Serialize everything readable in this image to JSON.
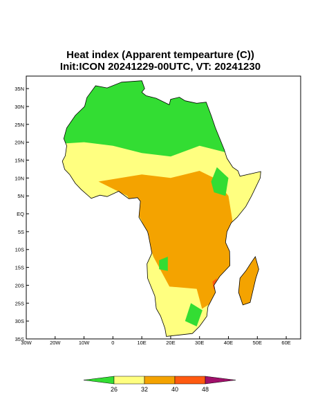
{
  "map": {
    "title": [
      "Heat index (Apparent tempearture (C))",
      "Init:ICON 20241229-00UTC, VT: 20241230"
    ],
    "lon_range": [
      -30,
      65
    ],
    "lat_range": [
      -35,
      38.5
    ],
    "lon_ticks": [
      {
        "value": -30,
        "label": "30W"
      },
      {
        "value": -20,
        "label": "20W"
      },
      {
        "value": -10,
        "label": "10W"
      },
      0,
      {
        "value": 10,
        "label": "10E"
      },
      {
        "value": 20,
        "label": "20E"
      },
      {
        "value": 30,
        "label": "30E"
      },
      {
        "value": 40,
        "label": "40E"
      },
      {
        "value": 50,
        "label": "50E"
      },
      {
        "value": 60,
        "label": "60E"
      }
    ],
    "lat_ticks": [
      {
        "value": 35,
        "label": "35N"
      },
      {
        "value": 30,
        "label": "30N"
      },
      {
        "value": 25,
        "label": "25N"
      },
      {
        "value": 20,
        "label": "20N"
      },
      {
        "value": 15,
        "label": "15N"
      },
      {
        "value": 10,
        "label": "10N"
      },
      {
        "value": 5,
        "label": "5N"
      },
      {
        "value": 0,
        "label": "EQ"
      },
      {
        "value": -5,
        "label": "5S"
      },
      {
        "value": -10,
        "label": "10S"
      },
      {
        "value": -15,
        "label": "15S"
      },
      {
        "value": -20,
        "label": "20S"
      },
      {
        "value": -25,
        "label": "25S"
      },
      {
        "value": -30,
        "label": "30S"
      },
      {
        "value": -35,
        "label": "35S"
      }
    ],
    "colorbar": {
      "ticks": [
        26,
        32,
        40,
        48
      ],
      "colors": [
        "#33dd33",
        "#ffff80",
        "#f4a300",
        "#ff5a10",
        "#a0106a"
      ]
    }
  }
}
